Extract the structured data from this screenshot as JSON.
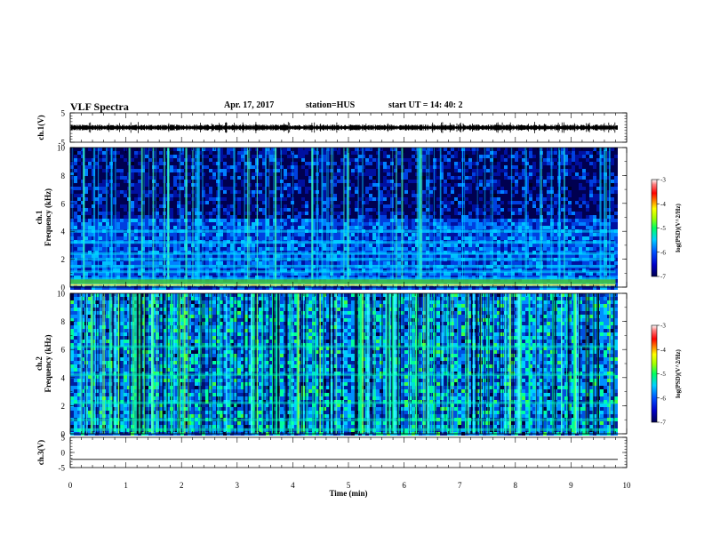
{
  "header": {
    "title": "VLF Spectra",
    "date": "Apr. 17, 2017",
    "station": "station=HUS",
    "start_time": "start  UT =   14: 40: 2"
  },
  "chart_data": [
    {
      "type": "line",
      "panel": "ch1-waveform",
      "ylabel": "ch.1(V)",
      "ylim": [
        -5,
        5
      ],
      "y_ticks": [
        "5",
        "-5"
      ],
      "xlim": [
        0,
        10
      ],
      "note_level": 0,
      "color": "#000000"
    },
    {
      "type": "heatmap",
      "panel": "ch1-spectrogram",
      "ylabel": "ch.1\nFrequency (kHz)",
      "ylim": [
        0,
        10
      ],
      "y_ticks": [
        "0",
        "2",
        "4",
        "6",
        "8",
        "10"
      ],
      "xlim": [
        0,
        9.8
      ],
      "colorbar": {
        "label": "log(PSD)(V^2/Hz)",
        "ticks": [
          "-3",
          "-4",
          "-5",
          "-6",
          "-7"
        ],
        "range": [
          -7,
          -3
        ]
      },
      "background_color": "#0a1a8a",
      "bands_kHz": [
        0.3,
        0.6,
        1.1,
        1.5,
        2.0,
        2.4,
        3.2,
        4.0
      ],
      "dark_region_kHz": [
        5.0,
        10.0
      ]
    },
    {
      "type": "heatmap",
      "panel": "ch2-spectrogram",
      "ylabel": "ch.2\nFrequency (kHz)",
      "ylim": [
        0,
        10
      ],
      "y_ticks": [
        "0",
        "2",
        "4",
        "6",
        "8",
        "10"
      ],
      "xlim": [
        0,
        9.8
      ],
      "colorbar": {
        "label": "log(PSD)(V^2/Hz)",
        "ticks": [
          "-3",
          "-4",
          "-5",
          "-6",
          "-7"
        ],
        "range": [
          -7,
          -3
        ]
      },
      "background_color": "#1040b0",
      "activity": "high"
    },
    {
      "type": "line",
      "panel": "ch3-waveform",
      "ylabel": "ch.3(V)",
      "ylim": [
        -5,
        5
      ],
      "y_ticks": [
        "5",
        "0",
        "-5"
      ],
      "xlim": [
        0,
        10
      ],
      "flat_level": -2.3,
      "color": "#000000"
    }
  ],
  "x_axis": {
    "label": "Time (min)",
    "ticks": [
      "0",
      "1",
      "2",
      "3",
      "4",
      "5",
      "6",
      "7",
      "8",
      "9",
      "10"
    ],
    "range": [
      0,
      10
    ]
  },
  "colors": {
    "colormap": [
      "#000060",
      "#0000c8",
      "#0050ff",
      "#00c8ff",
      "#00ff80",
      "#80ff00",
      "#ffff00",
      "#ff8000",
      "#ff0000",
      "#ff3030",
      "#ffffff"
    ]
  }
}
